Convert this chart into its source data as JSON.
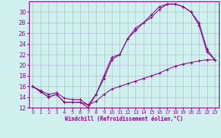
{
  "title": "",
  "xlabel": "Windchill (Refroidissement éolien,°C)",
  "bg_color": "#d0f0f0",
  "line_color": "#880088",
  "grid_color": "#aabbcc",
  "xlim": [
    -0.5,
    23.5
  ],
  "ylim": [
    12,
    32
  ],
  "xticks": [
    0,
    1,
    2,
    3,
    4,
    5,
    6,
    7,
    8,
    9,
    10,
    11,
    12,
    13,
    14,
    15,
    16,
    17,
    18,
    19,
    20,
    21,
    22,
    23
  ],
  "yticks": [
    12,
    14,
    16,
    18,
    20,
    22,
    24,
    26,
    28,
    30
  ],
  "line1_x": [
    0,
    1,
    2,
    3,
    4,
    5,
    6,
    7,
    8,
    9,
    10,
    11,
    12,
    13,
    14,
    15,
    16,
    17,
    18,
    19,
    20,
    21,
    22,
    23
  ],
  "line1_y": [
    16.0,
    15.0,
    14.0,
    14.5,
    13.0,
    13.0,
    13.0,
    12.0,
    14.5,
    18.0,
    21.5,
    22.0,
    25.0,
    27.0,
    28.0,
    29.0,
    30.5,
    31.5,
    31.5,
    31.0,
    30.0,
    28.0,
    23.0,
    21.0
  ],
  "line2_x": [
    0,
    1,
    2,
    3,
    4,
    5,
    6,
    7,
    8,
    9,
    10,
    11,
    12,
    13,
    14,
    15,
    16,
    17,
    18,
    19,
    20,
    21,
    22,
    23
  ],
  "line2_y": [
    16.0,
    15.0,
    14.0,
    14.5,
    13.0,
    13.0,
    13.0,
    12.5,
    14.5,
    17.5,
    21.0,
    22.0,
    25.0,
    26.5,
    28.0,
    29.5,
    31.0,
    31.5,
    31.5,
    31.0,
    30.0,
    27.5,
    22.5,
    21.0
  ],
  "line3_x": [
    0,
    1,
    2,
    3,
    4,
    5,
    6,
    7,
    8,
    9,
    10,
    11,
    12,
    13,
    14,
    15,
    16,
    17,
    18,
    19,
    20,
    21,
    22,
    23
  ],
  "line3_y": [
    16.0,
    15.2,
    14.5,
    14.8,
    13.8,
    13.5,
    13.5,
    12.5,
    13.2,
    14.5,
    15.5,
    16.0,
    16.5,
    17.0,
    17.5,
    18.0,
    18.5,
    19.2,
    19.8,
    20.2,
    20.5,
    20.8,
    21.0,
    21.0
  ]
}
